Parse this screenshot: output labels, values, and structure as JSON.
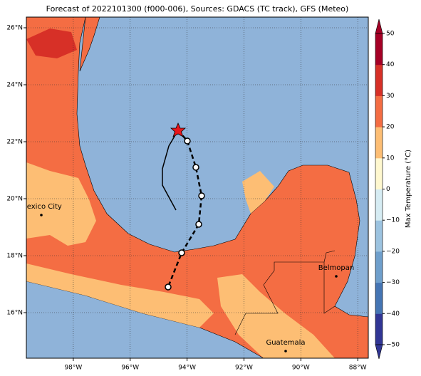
{
  "map": {
    "title": "Forecast of 2022101300 (f000-006), Sources: GDACS (TC track), GFS (Meteo)",
    "xlim": [
      -99.65,
      -87.63
    ],
    "ylim": [
      14.4,
      26.375
    ],
    "lon_ticks": [
      {
        "value": -98,
        "label": "98°W"
      },
      {
        "value": -96,
        "label": "96°W"
      },
      {
        "value": -94,
        "label": "94°W"
      },
      {
        "value": -92,
        "label": "92°W"
      },
      {
        "value": -90,
        "label": "90°W"
      },
      {
        "value": -88,
        "label": "88°W"
      }
    ],
    "lat_ticks": [
      {
        "value": 16,
        "label": "16°N"
      },
      {
        "value": 18,
        "label": "18°N"
      },
      {
        "value": 20,
        "label": "20°N"
      },
      {
        "value": 22,
        "label": "22°N"
      },
      {
        "value": 24,
        "label": "24°N"
      },
      {
        "value": 26,
        "label": "26°N"
      }
    ],
    "cities": [
      "Mexico City",
      "Belmopan",
      "Guatemala"
    ],
    "colorbar": {
      "label": "Max Temperature (°C)",
      "lim": [
        -50,
        50
      ],
      "ticks": [
        {
          "value": -50,
          "label": "−50"
        },
        {
          "value": -40,
          "label": "−40"
        },
        {
          "value": -30,
          "label": "−30"
        },
        {
          "value": -20,
          "label": "−20"
        },
        {
          "value": -10,
          "label": "−10"
        },
        0,
        10,
        20,
        30,
        40,
        50
      ],
      "colors": [
        "#313695",
        "#4575b4",
        "#6f9fcc",
        "#9cc3e0",
        "#d6ecf3",
        "#fff8cf",
        "#fdbe74",
        "#f46d43",
        "#d73027",
        "#a50026"
      ]
    }
  }
}
